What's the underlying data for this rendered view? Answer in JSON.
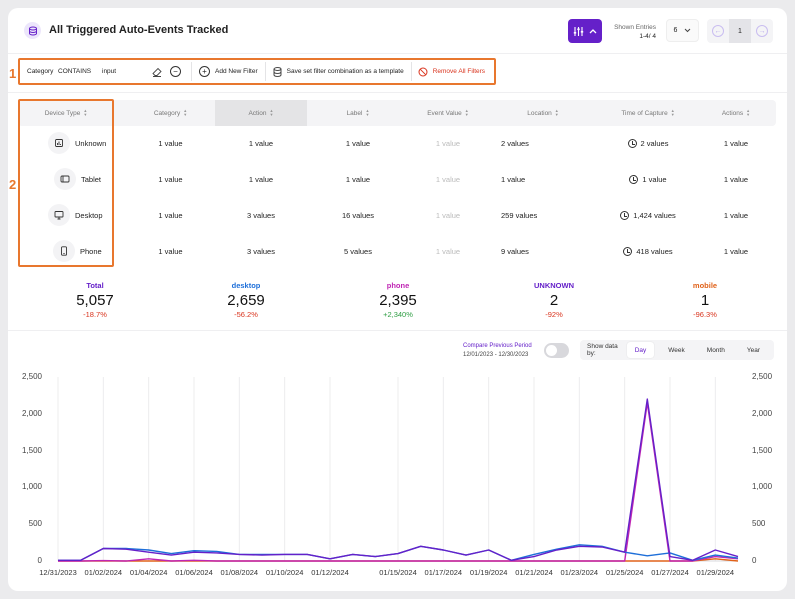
{
  "header": {
    "title": "All Triggered Auto-Events Tracked",
    "shown_entries_label": "Shown Entries",
    "shown_entries_range": "1-4/ 4",
    "entries_per_page": "6",
    "current_page": "1"
  },
  "filter": {
    "field": "Category",
    "operator": "CONTAINS",
    "value": "input",
    "add_label": "Add New Filter",
    "save_label": "Save set filter combination as a template",
    "remove_label": "Remove All Filters"
  },
  "annotations": {
    "one": "1",
    "two": "2"
  },
  "table": {
    "columns": [
      "Device Type",
      "Category",
      "Action",
      "Label",
      "Event Value",
      "Location",
      "Time of Capture",
      "Actions"
    ],
    "rows": [
      {
        "device": "Unknown",
        "icon": "unknown-device-icon",
        "category": "1 value",
        "action": "1 value",
        "label": "1 value",
        "event_value": "1 value",
        "location": "2 values",
        "time": "2 values",
        "actions": "1 value"
      },
      {
        "device": "Tablet",
        "icon": "tablet-icon",
        "category": "1 value",
        "action": "1 value",
        "label": "1 value",
        "event_value": "1 value",
        "location": "1 value",
        "time": "1 value",
        "actions": "1 value"
      },
      {
        "device": "Desktop",
        "icon": "desktop-icon",
        "category": "1 value",
        "action": "3 values",
        "label": "16 values",
        "event_value": "1 value",
        "location": "259 values",
        "time": "1,424 values",
        "actions": "1 value"
      },
      {
        "device": "Phone",
        "icon": "phone-icon",
        "category": "1 value",
        "action": "3 values",
        "label": "5 values",
        "event_value": "1 value",
        "location": "9 values",
        "time": "418 values",
        "actions": "1 value"
      }
    ]
  },
  "totals": [
    {
      "label": "Total",
      "value": "5,057",
      "change": "-18.7%",
      "color": "#6520c9",
      "trend": "neg"
    },
    {
      "label": "desktop",
      "value": "2,659",
      "change": "-56.2%",
      "color": "#1e6fd9",
      "trend": "neg"
    },
    {
      "label": "phone",
      "value": "2,395",
      "change": "+2,340%",
      "color": "#c026b4",
      "trend": "pos"
    },
    {
      "label": "UNKNOWN",
      "value": "2",
      "change": "-92%",
      "color": "#6520c9",
      "trend": "neg"
    },
    {
      "label": "mobile",
      "value": "1",
      "change": "-96.3%",
      "color": "#e0621a",
      "trend": "neg"
    }
  ],
  "controls": {
    "compare_label": "Compare Previous Period",
    "compare_range": "12/01/2023 - 12/30/2023",
    "show_by_label": "Show data by:",
    "options": [
      "Day",
      "Week",
      "Month",
      "Year"
    ],
    "active_option": "Day"
  },
  "chart_data": {
    "type": "line",
    "ylim": [
      0,
      2500
    ],
    "y_ticks": [
      "0",
      "500",
      "1,000",
      "1,500",
      "2,000",
      "2,500"
    ],
    "x_tick_labels": [
      "12/31/2023",
      "01/02/2024",
      "01/04/2024",
      "01/06/2024",
      "01/08/2024",
      "01/10/2024",
      "01/12/2024",
      "01/15/2024",
      "01/17/2024",
      "01/19/2024",
      "01/21/2024",
      "01/23/2024",
      "01/25/2024",
      "01/27/2024",
      "01/29/2024"
    ],
    "x": [
      "12/31/2023",
      "01/01/2024",
      "01/02/2024",
      "01/03/2024",
      "01/04/2024",
      "01/05/2024",
      "01/06/2024",
      "01/07/2024",
      "01/08/2024",
      "01/09/2024",
      "01/10/2024",
      "01/11/2024",
      "01/12/2024",
      "01/13/2024",
      "01/14/2024",
      "01/15/2024",
      "01/16/2024",
      "01/17/2024",
      "01/18/2024",
      "01/19/2024",
      "01/20/2024",
      "01/21/2024",
      "01/22/2024",
      "01/23/2024",
      "01/24/2024",
      "01/25/2024",
      "01/26/2024",
      "01/27/2024",
      "01/28/2024",
      "01/29/2024",
      "01/30/2024"
    ],
    "series": [
      {
        "color": "#6520c9",
        "values": [
          10,
          10,
          170,
          160,
          120,
          80,
          120,
          110,
          90,
          80,
          90,
          90,
          30,
          90,
          60,
          100,
          200,
          150,
          80,
          150,
          10,
          60,
          150,
          200,
          190,
          120,
          2200,
          60,
          10,
          150,
          60
        ]
      },
      {
        "color": "#1e6fd9",
        "values": [
          10,
          10,
          170,
          170,
          150,
          100,
          140,
          130,
          90,
          90,
          90,
          90,
          30,
          90,
          60,
          100,
          200,
          150,
          80,
          150,
          10,
          90,
          160,
          220,
          200,
          120,
          70,
          110,
          10,
          80,
          40
        ]
      },
      {
        "color": "#c026b4",
        "values": [
          0,
          0,
          5,
          0,
          30,
          0,
          10,
          0,
          0,
          0,
          0,
          0,
          0,
          0,
          0,
          0,
          0,
          0,
          0,
          0,
          0,
          0,
          0,
          0,
          0,
          0,
          2150,
          0,
          0,
          60,
          30
        ]
      },
      {
        "color": "#e0621a",
        "values": [
          0,
          0,
          0,
          0,
          0,
          0,
          0,
          0,
          0,
          0,
          0,
          0,
          0,
          0,
          0,
          0,
          0,
          0,
          0,
          0,
          0,
          0,
          0,
          0,
          0,
          0,
          0,
          0,
          0,
          30,
          0
        ]
      }
    ]
  }
}
